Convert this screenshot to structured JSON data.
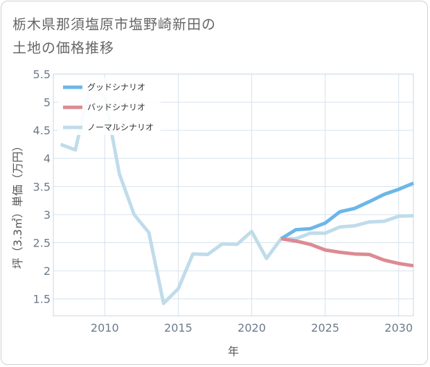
{
  "title": "栃木県那須塩原市塩野崎新田の\n土地の価格推移",
  "chart_data": {
    "type": "line",
    "xlabel": "年",
    "ylabel": "坪（3.3㎡）単価（万円）",
    "xlim": [
      2006.5,
      2031
    ],
    "ylim": [
      1.2,
      5.5
    ],
    "x_ticks": [
      2010,
      2015,
      2020,
      2025,
      2030
    ],
    "y_ticks": [
      1.5,
      2,
      2.5,
      3,
      3.5,
      4,
      4.5,
      5,
      5.5
    ],
    "x_tick_labels": [
      "2010",
      "2015",
      "2020",
      "2025",
      "2030"
    ],
    "y_tick_labels": [
      "1.5",
      "2",
      "2.5",
      "3",
      "3.5",
      "4",
      "4.5",
      "5",
      "5.5"
    ],
    "grid": true,
    "legend_position": "top-left",
    "series": [
      {
        "name": "グッドシナリオ",
        "color": "#6cb6e8",
        "x": [
          2022,
          2023,
          2024,
          2025,
          2026,
          2027,
          2028,
          2029,
          2030,
          2031
        ],
        "y": [
          2.57,
          2.73,
          2.75,
          2.85,
          3.05,
          3.11,
          3.23,
          3.36,
          3.45,
          3.56
        ]
      },
      {
        "name": "バッドシナリオ",
        "color": "#dd8a92",
        "x": [
          2022,
          2023,
          2024,
          2025,
          2026,
          2027,
          2028,
          2029,
          2030,
          2031
        ],
        "y": [
          2.57,
          2.53,
          2.47,
          2.37,
          2.33,
          2.3,
          2.29,
          2.19,
          2.13,
          2.09
        ]
      },
      {
        "name": "ノーマルシナリオ",
        "color": "#c0dcea",
        "x": [
          2007,
          2008,
          2009,
          2010,
          2011,
          2012,
          2013,
          2014,
          2015,
          2016,
          2017,
          2018,
          2019,
          2020,
          2021,
          2022,
          2023,
          2024,
          2025,
          2026,
          2027,
          2028,
          2029,
          2030,
          2031
        ],
        "y": [
          4.25,
          4.15,
          5.3,
          5.1,
          3.72,
          3.0,
          2.68,
          1.42,
          1.68,
          2.3,
          2.29,
          2.48,
          2.47,
          2.7,
          2.22,
          2.57,
          2.57,
          2.67,
          2.67,
          2.78,
          2.8,
          2.87,
          2.88,
          2.97,
          2.98
        ]
      }
    ]
  }
}
